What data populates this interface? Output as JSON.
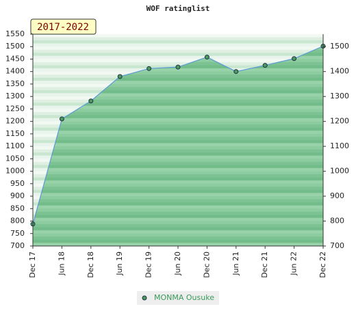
{
  "chart_data": {
    "type": "line",
    "title": "WOF ratinglist",
    "annotation": "2017-2022",
    "categories": [
      "Dec 17",
      "Jun 18",
      "Dec 18",
      "Jun 19",
      "Dec 19",
      "Jun 20",
      "Dec 20",
      "Jun 21",
      "Dec 21",
      "Jun 22",
      "Dec 22"
    ],
    "series": [
      {
        "name": "MONMA Ousuke",
        "color": "#5b9bd5",
        "marker_color": "#4a9a60",
        "fill": true,
        "values": [
          788,
          1210,
          1282,
          1380,
          1412,
          1418,
          1458,
          1400,
          1425,
          1452,
          1502
        ]
      }
    ],
    "ylim": [
      700,
      1550
    ],
    "yticks": [
      700,
      750,
      800,
      850,
      900,
      950,
      1000,
      1050,
      1100,
      1150,
      1200,
      1250,
      1300,
      1350,
      1400,
      1450,
      1500,
      1550
    ],
    "y2lim": [
      700,
      1550
    ],
    "y2ticks": [
      700,
      800,
      900,
      1000,
      1100,
      1200,
      1300,
      1400,
      1500
    ]
  }
}
